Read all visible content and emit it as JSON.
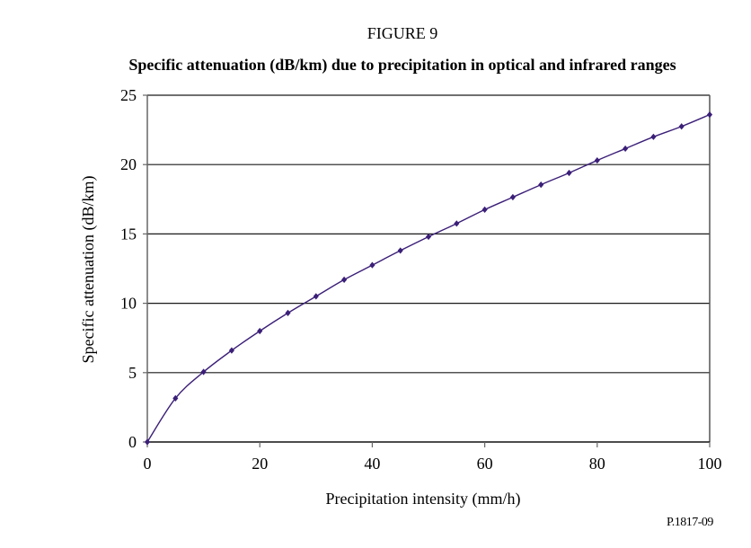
{
  "figure": {
    "number_label": "FIGURE 9",
    "title": "Specific attenuation (dB/km) due to precipitation in optical and infrared ranges",
    "id_label": "P.1817-09"
  },
  "chart_data": {
    "type": "line",
    "title": "Specific attenuation (dB/km) due to precipitation in optical and infrared ranges",
    "xlabel": "Precipitation intensity (mm/h)",
    "ylabel": "Specific attenuation (dB/km)",
    "xlim": [
      0,
      100
    ],
    "ylim": [
      0,
      25
    ],
    "xticks": [
      0,
      20,
      40,
      60,
      80,
      100
    ],
    "yticks": [
      0,
      5,
      10,
      15,
      20,
      25
    ],
    "grid": "horizontal",
    "legend": "none",
    "series": [
      {
        "name": "Specific attenuation",
        "color": "#3b1f78",
        "marker": "diamond",
        "x": [
          0,
          5,
          10,
          15,
          20,
          25,
          30,
          35,
          40,
          45,
          50,
          55,
          60,
          65,
          70,
          75,
          80,
          85,
          90,
          95,
          100
        ],
        "y": [
          0,
          3.15,
          5.05,
          6.6,
          8.0,
          9.3,
          10.5,
          11.7,
          12.75,
          13.8,
          14.8,
          15.75,
          16.75,
          17.65,
          18.55,
          19.4,
          20.3,
          21.15,
          22.0,
          22.75,
          23.6
        ]
      }
    ]
  }
}
